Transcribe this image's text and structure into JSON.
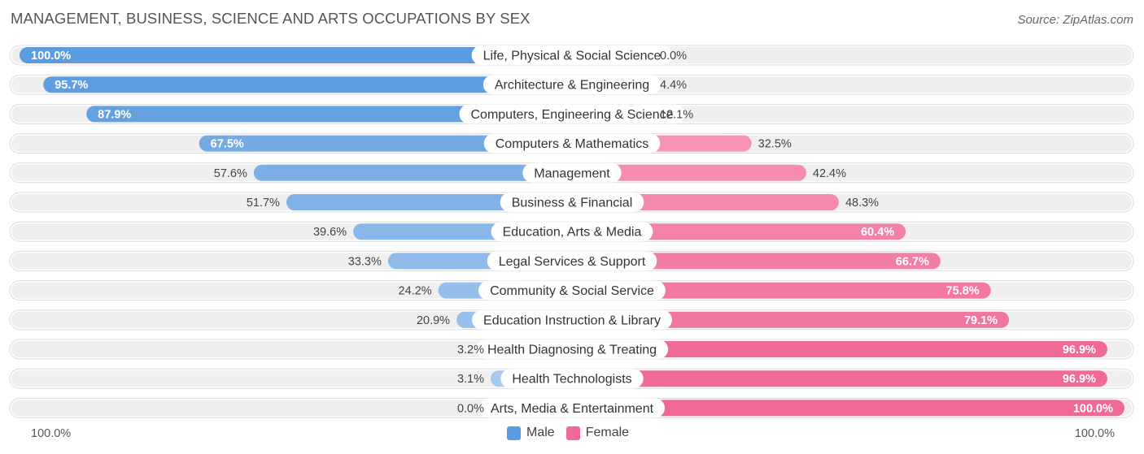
{
  "header": {
    "title": "MANAGEMENT, BUSINESS, SCIENCE AND ARTS OCCUPATIONS BY SEX",
    "source": "Source: ZipAtlas.com"
  },
  "axis": {
    "left_label": "100.0%",
    "right_label": "100.0%"
  },
  "colors": {
    "male": "#5b9bdf",
    "male_light": "#a9c9ef",
    "female": "#f06896",
    "female_light": "#f7a9c3",
    "track": "#efefef"
  },
  "chart_data": {
    "type": "bar",
    "orientation": "diverging-horizontal",
    "title": "MANAGEMENT, BUSINESS, SCIENCE AND ARTS OCCUPATIONS BY SEX",
    "xlim": [
      0,
      100
    ],
    "legend": {
      "position": "bottom-center",
      "entries": [
        "Male",
        "Female"
      ]
    },
    "categories": [
      "Life, Physical & Social Science",
      "Architecture & Engineering",
      "Computers, Engineering & Science",
      "Computers & Mathematics",
      "Management",
      "Business & Financial",
      "Education, Arts & Media",
      "Legal Services & Support",
      "Community & Social Service",
      "Education Instruction & Library",
      "Health Diagnosing & Treating",
      "Health Technologists",
      "Arts, Media & Entertainment"
    ],
    "series": [
      {
        "name": "Male",
        "values": [
          100.0,
          95.7,
          87.9,
          67.5,
          57.6,
          51.7,
          39.6,
          33.3,
          24.2,
          20.9,
          3.2,
          3.1,
          0.0
        ],
        "labels": [
          "100.0%",
          "95.7%",
          "87.9%",
          "67.5%",
          "57.6%",
          "51.7%",
          "39.6%",
          "33.3%",
          "24.2%",
          "20.9%",
          "3.2%",
          "3.1%",
          "0.0%"
        ]
      },
      {
        "name": "Female",
        "values": [
          0.0,
          4.4,
          12.1,
          32.5,
          42.4,
          48.3,
          60.4,
          66.7,
          75.8,
          79.1,
          96.9,
          96.9,
          100.0
        ],
        "labels": [
          "0.0%",
          "4.4%",
          "12.1%",
          "32.5%",
          "42.4%",
          "48.3%",
          "60.4%",
          "66.7%",
          "75.8%",
          "79.1%",
          "96.9%",
          "96.9%",
          "100.0%"
        ]
      }
    ]
  }
}
